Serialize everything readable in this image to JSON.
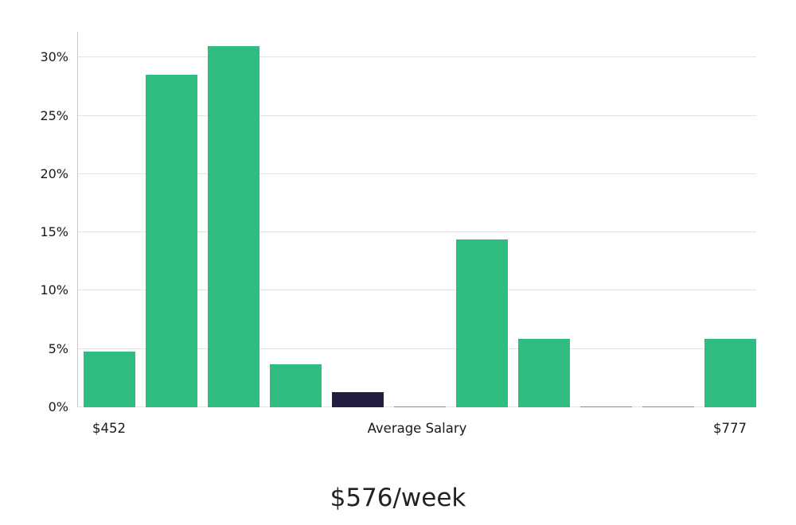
{
  "chart_data": {
    "type": "bar",
    "title": "$576/week",
    "values": [
      4.8,
      28.5,
      31.0,
      3.7,
      1.3,
      0.1,
      14.4,
      5.9,
      0.1,
      0.1,
      5.9
    ],
    "highlight_index": 4,
    "y_ticks": [
      0,
      5,
      10,
      15,
      20,
      25,
      30
    ],
    "y_tick_suffix": "%",
    "ylim": [
      0,
      32.2
    ],
    "grid": true,
    "legend": "none",
    "x_tick_labels": {
      "left": "$452",
      "center": "Average Salary",
      "right": "$777"
    },
    "colors": {
      "bar": "#2ebd7e",
      "highlight": "#221e41",
      "gridline": "#e4e4e4",
      "axis": "#c9c9c9"
    }
  }
}
